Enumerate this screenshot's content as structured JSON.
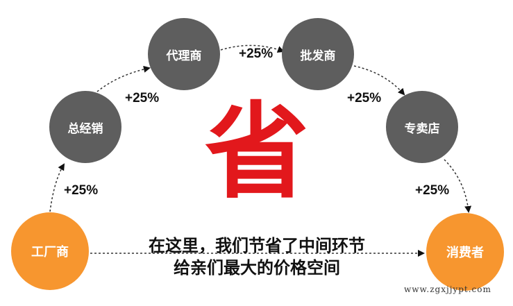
{
  "nodes": {
    "factory": "工厂商",
    "distributor": "总经销",
    "agent": "代理商",
    "wholesaler": "批发商",
    "store": "专卖店",
    "consumer": "消费者"
  },
  "markups": [
    "+25%",
    "+25%",
    "+25%",
    "+25%",
    "+25%"
  ],
  "center_char": "省",
  "caption": [
    "在这里，我们节省了中间环节",
    "给亲们最大的价格空间"
  ],
  "watermark": "www.zgxjjypt.com",
  "colors": {
    "gray": "#5e5e5e",
    "orange": "#f7962f",
    "red": "#e2181c"
  }
}
